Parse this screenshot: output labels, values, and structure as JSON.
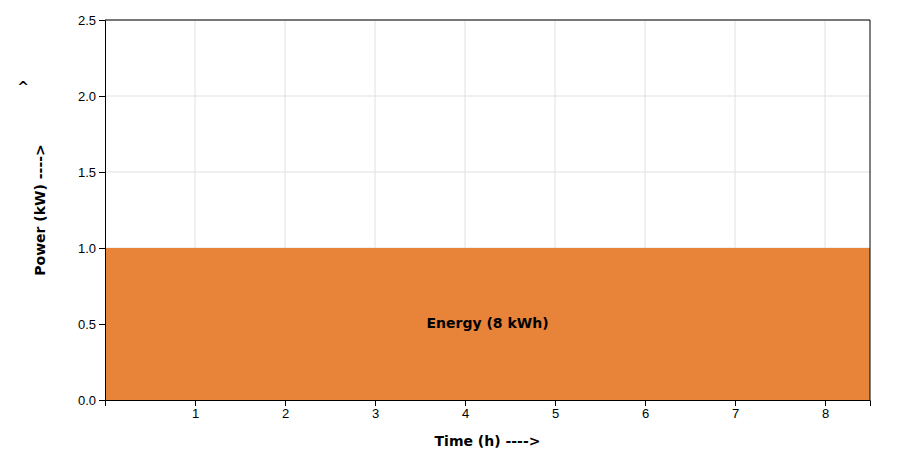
{
  "chart_data": {
    "type": "area",
    "x": [
      0,
      8.5
    ],
    "values": [
      1.0,
      1.0
    ],
    "color": "#E8833A",
    "xlabel": "Time (h) ---->",
    "ylabel": "Power (kW) ---->",
    "annotations": [
      {
        "text": "Energy (8 kWh)",
        "x": 4.25,
        "y": 0.5
      },
      {
        "text": "^"
      }
    ],
    "xlim": [
      0,
      8.5
    ],
    "ylim": [
      0,
      2.5
    ],
    "xticks": [
      1,
      2,
      3,
      4,
      5,
      6,
      7,
      8
    ],
    "yticks": [
      {
        "value": 0,
        "label": "0.0"
      },
      0.5,
      {
        "value": 1.0,
        "label": "1.0"
      },
      1.5,
      {
        "value": 2.0,
        "label": "2.0"
      },
      2.5
    ],
    "grid": true
  }
}
